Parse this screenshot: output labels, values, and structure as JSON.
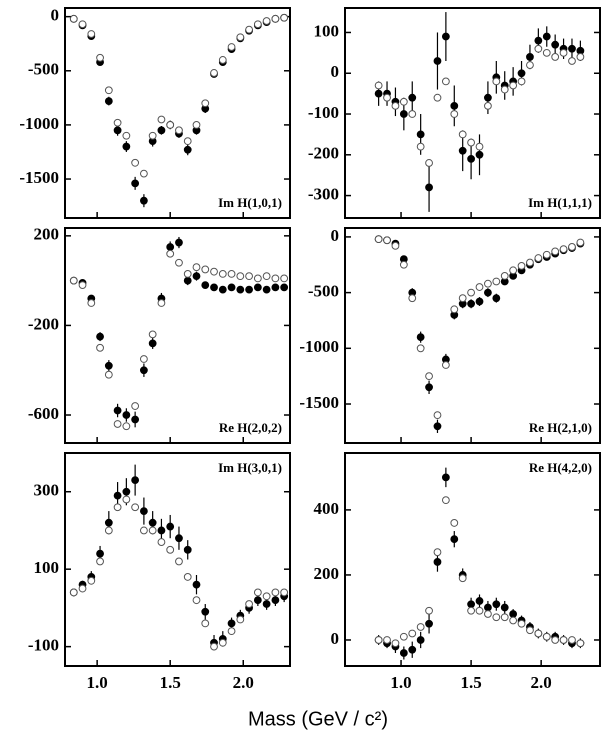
{
  "chart_data": [
    {
      "type": "scatter",
      "title": "Im H(1,0,1)",
      "title_position": "bottom-right",
      "x": [
        0.84,
        0.9,
        0.96,
        1.02,
        1.08,
        1.14,
        1.2,
        1.26,
        1.32,
        1.38,
        1.44,
        1.5,
        1.56,
        1.62,
        1.68,
        1.74,
        1.8,
        1.86,
        1.92,
        1.98,
        2.04,
        2.1,
        2.16,
        2.22,
        2.28
      ],
      "xlim": [
        0.78,
        2.32
      ],
      "xticks": [
        {
          "value": 1,
          "label": "1.0"
        },
        {
          "value": 1.5,
          "label": "1.5"
        },
        {
          "value": 2,
          "label": "2.0"
        }
      ],
      "ylim": [
        -1860,
        80
      ],
      "yticks": [
        0,
        -500,
        -1000,
        -1500
      ],
      "series": [
        {
          "marker": "filled",
          "color": "#000000",
          "values": [
            -20,
            -80,
            -180,
            -420,
            -780,
            -1050,
            -1200,
            -1540,
            -1700,
            -1150,
            -1050,
            -1000,
            -1080,
            -1230,
            -1050,
            -850,
            -530,
            -420,
            -300,
            -200,
            -130,
            -80,
            -50,
            -20,
            -10
          ],
          "errors": [
            20,
            20,
            25,
            30,
            40,
            50,
            50,
            60,
            60,
            50,
            40,
            40,
            40,
            50,
            40,
            40,
            30,
            30,
            25,
            25,
            20,
            20,
            20,
            20,
            20
          ]
        },
        {
          "marker": "open",
          "color": "#555555",
          "values": [
            -20,
            -70,
            -160,
            -380,
            -680,
            -980,
            -1100,
            -1350,
            -1450,
            -1100,
            -950,
            -1000,
            -1050,
            -1150,
            -1000,
            -800,
            -520,
            -400,
            -280,
            -190,
            -120,
            -70,
            -40,
            -20,
            -10
          ]
        }
      ]
    },
    {
      "type": "scatter",
      "title": "Im H(1,1,1)",
      "title_position": "bottom-right",
      "x": [
        0.84,
        0.9,
        0.96,
        1.02,
        1.08,
        1.14,
        1.2,
        1.26,
        1.32,
        1.38,
        1.44,
        1.5,
        1.56,
        1.62,
        1.68,
        1.74,
        1.8,
        1.86,
        1.92,
        1.98,
        2.04,
        2.1,
        2.16,
        2.22,
        2.28
      ],
      "xlim": [
        0.6,
        2.42
      ],
      "xticks": [
        {
          "value": 1,
          "label": "1.0"
        },
        {
          "value": 1.5,
          "label": "1.5"
        },
        {
          "value": 2,
          "label": "2.0"
        }
      ],
      "ylim": [
        -355,
        160
      ],
      "yticks": [
        100,
        0,
        -100,
        -200,
        -300
      ],
      "series": [
        {
          "marker": "filled",
          "color": "#000000",
          "values": [
            -50,
            -50,
            -70,
            -100,
            -60,
            -150,
            -280,
            30,
            90,
            -80,
            -190,
            -210,
            -200,
            -60,
            -10,
            -30,
            -20,
            0,
            40,
            80,
            90,
            70,
            60,
            60,
            55
          ],
          "errors": [
            30,
            30,
            35,
            40,
            40,
            50,
            60,
            70,
            60,
            50,
            50,
            50,
            50,
            40,
            40,
            35,
            35,
            30,
            30,
            30,
            25,
            25,
            25,
            25,
            25
          ]
        },
        {
          "marker": "open",
          "color": "#555555",
          "values": [
            -30,
            -60,
            -80,
            -70,
            -100,
            -180,
            -220,
            -60,
            -20,
            -100,
            -150,
            -170,
            -180,
            -80,
            -20,
            -40,
            -30,
            -20,
            20,
            60,
            50,
            40,
            50,
            30,
            40
          ]
        }
      ]
    },
    {
      "type": "scatter",
      "title": "Re H(2,0,2)",
      "title_position": "bottom-right",
      "x": [
        0.84,
        0.9,
        0.96,
        1.02,
        1.08,
        1.14,
        1.2,
        1.26,
        1.32,
        1.38,
        1.44,
        1.5,
        1.56,
        1.62,
        1.68,
        1.74,
        1.8,
        1.86,
        1.92,
        1.98,
        2.04,
        2.1,
        2.16,
        2.22,
        2.28
      ],
      "xlim": [
        0.78,
        2.32
      ],
      "xticks": [
        {
          "value": 1,
          "label": "1.0"
        },
        {
          "value": 1.5,
          "label": "1.5"
        },
        {
          "value": 2,
          "label": "2.0"
        }
      ],
      "ylim": [
        -725,
        235
      ],
      "yticks": [
        200,
        -200,
        -600
      ],
      "series": [
        {
          "marker": "filled",
          "color": "#000000",
          "values": [
            0,
            -10,
            -80,
            -250,
            -380,
            -580,
            -600,
            -620,
            -400,
            -280,
            -80,
            150,
            170,
            0,
            20,
            -20,
            -30,
            -40,
            -30,
            -40,
            -40,
            -30,
            -40,
            -30,
            -30
          ],
          "errors": [
            10,
            10,
            15,
            20,
            25,
            30,
            30,
            35,
            30,
            25,
            25,
            25,
            25,
            20,
            20,
            15,
            15,
            15,
            15,
            15,
            15,
            15,
            15,
            15,
            15
          ]
        },
        {
          "marker": "open",
          "color": "#555555",
          "values": [
            0,
            -20,
            -100,
            -300,
            -420,
            -640,
            -650,
            -560,
            -350,
            -240,
            -100,
            120,
            80,
            30,
            60,
            50,
            40,
            30,
            30,
            20,
            20,
            10,
            20,
            10,
            10
          ]
        }
      ]
    },
    {
      "type": "scatter",
      "title": "Re H(2,1,0)",
      "title_position": "bottom-right",
      "x": [
        0.84,
        0.9,
        0.96,
        1.02,
        1.08,
        1.14,
        1.2,
        1.26,
        1.32,
        1.38,
        1.44,
        1.5,
        1.56,
        1.62,
        1.68,
        1.74,
        1.8,
        1.86,
        1.92,
        1.98,
        2.04,
        2.1,
        2.16,
        2.22,
        2.28
      ],
      "xlim": [
        0.6,
        2.42
      ],
      "xticks": [
        {
          "value": 1,
          "label": "1.0"
        },
        {
          "value": 1.5,
          "label": "1.5"
        },
        {
          "value": 2,
          "label": "2.0"
        }
      ],
      "ylim": [
        -1850,
        80
      ],
      "yticks": [
        0,
        -500,
        -1000,
        -1500
      ],
      "series": [
        {
          "marker": "filled",
          "color": "#000000",
          "values": [
            -20,
            -30,
            -60,
            -200,
            -500,
            -900,
            -1350,
            -1700,
            -1100,
            -700,
            -600,
            -600,
            -580,
            -500,
            -550,
            -400,
            -350,
            -300,
            -250,
            -200,
            -180,
            -150,
            -120,
            -100,
            -60
          ],
          "errors": [
            20,
            20,
            20,
            30,
            40,
            50,
            60,
            60,
            50,
            40,
            40,
            40,
            40,
            40,
            40,
            30,
            30,
            30,
            25,
            25,
            20,
            20,
            20,
            20,
            20
          ]
        },
        {
          "marker": "open",
          "color": "#555555",
          "values": [
            -20,
            -30,
            -80,
            -250,
            -550,
            -1000,
            -1250,
            -1600,
            -1150,
            -650,
            -550,
            -500,
            -450,
            -420,
            -400,
            -350,
            -300,
            -260,
            -230,
            -190,
            -160,
            -130,
            -110,
            -90,
            -50
          ]
        }
      ]
    },
    {
      "type": "scatter",
      "title": "Im H(3,0,1)",
      "title_position": "top-right",
      "x": [
        0.84,
        0.9,
        0.96,
        1.02,
        1.08,
        1.14,
        1.2,
        1.26,
        1.32,
        1.38,
        1.44,
        1.5,
        1.56,
        1.62,
        1.68,
        1.74,
        1.8,
        1.86,
        1.92,
        1.98,
        2.04,
        2.1,
        2.16,
        2.22,
        2.28
      ],
      "xlim": [
        0.78,
        2.32
      ],
      "xticks": [
        {
          "value": 1,
          "label": "1.0"
        },
        {
          "value": 1.5,
          "label": "1.5"
        },
        {
          "value": 2,
          "label": "2.0"
        }
      ],
      "ylim": [
        -150,
        400
      ],
      "yticks": [
        300,
        100,
        -100
      ],
      "series": [
        {
          "marker": "filled",
          "color": "#000000",
          "values": [
            40,
            60,
            80,
            140,
            220,
            290,
            300,
            330,
            250,
            220,
            200,
            210,
            180,
            150,
            60,
            -10,
            -90,
            -80,
            -40,
            -20,
            0,
            20,
            10,
            20,
            30
          ],
          "errors": [
            10,
            10,
            15,
            20,
            30,
            35,
            35,
            40,
            35,
            30,
            30,
            30,
            30,
            25,
            25,
            20,
            20,
            20,
            15,
            15,
            15,
            15,
            15,
            15,
            15
          ]
        },
        {
          "marker": "open",
          "color": "#555555",
          "values": [
            40,
            50,
            70,
            120,
            200,
            260,
            280,
            260,
            200,
            200,
            170,
            150,
            120,
            80,
            20,
            -40,
            -100,
            -90,
            -60,
            -30,
            10,
            40,
            30,
            40,
            40
          ]
        }
      ]
    },
    {
      "type": "scatter",
      "title": "Re H(4,2,0)",
      "title_position": "top-right",
      "x": [
        0.84,
        0.9,
        0.96,
        1.02,
        1.08,
        1.14,
        1.2,
        1.26,
        1.32,
        1.38,
        1.44,
        1.5,
        1.56,
        1.62,
        1.68,
        1.74,
        1.8,
        1.86,
        1.92,
        1.98,
        2.04,
        2.1,
        2.16,
        2.22,
        2.28
      ],
      "xlim": [
        0.6,
        2.42
      ],
      "xticks": [
        {
          "value": 1,
          "label": "1.0"
        },
        {
          "value": 1.5,
          "label": "1.5"
        },
        {
          "value": 2,
          "label": "2.0"
        }
      ],
      "ylim": [
        -80,
        575
      ],
      "yticks": [
        400,
        200,
        0
      ],
      "xlabel": "Mass  (GeV / c²)",
      "series": [
        {
          "marker": "filled",
          "color": "#000000",
          "values": [
            0,
            -10,
            -20,
            -40,
            -30,
            0,
            50,
            240,
            500,
            310,
            200,
            110,
            120,
            100,
            110,
            100,
            80,
            60,
            40,
            20,
            10,
            10,
            0,
            -10,
            -10
          ],
          "errors": [
            15,
            15,
            20,
            20,
            25,
            25,
            30,
            30,
            30,
            25,
            20,
            20,
            20,
            20,
            20,
            20,
            15,
            15,
            15,
            15,
            15,
            15,
            15,
            15,
            15
          ]
        },
        {
          "marker": "open",
          "color": "#555555",
          "values": [
            0,
            0,
            -10,
            10,
            20,
            40,
            90,
            270,
            430,
            360,
            190,
            90,
            90,
            80,
            70,
            70,
            60,
            50,
            30,
            20,
            10,
            0,
            0,
            0,
            -10
          ]
        }
      ]
    }
  ]
}
